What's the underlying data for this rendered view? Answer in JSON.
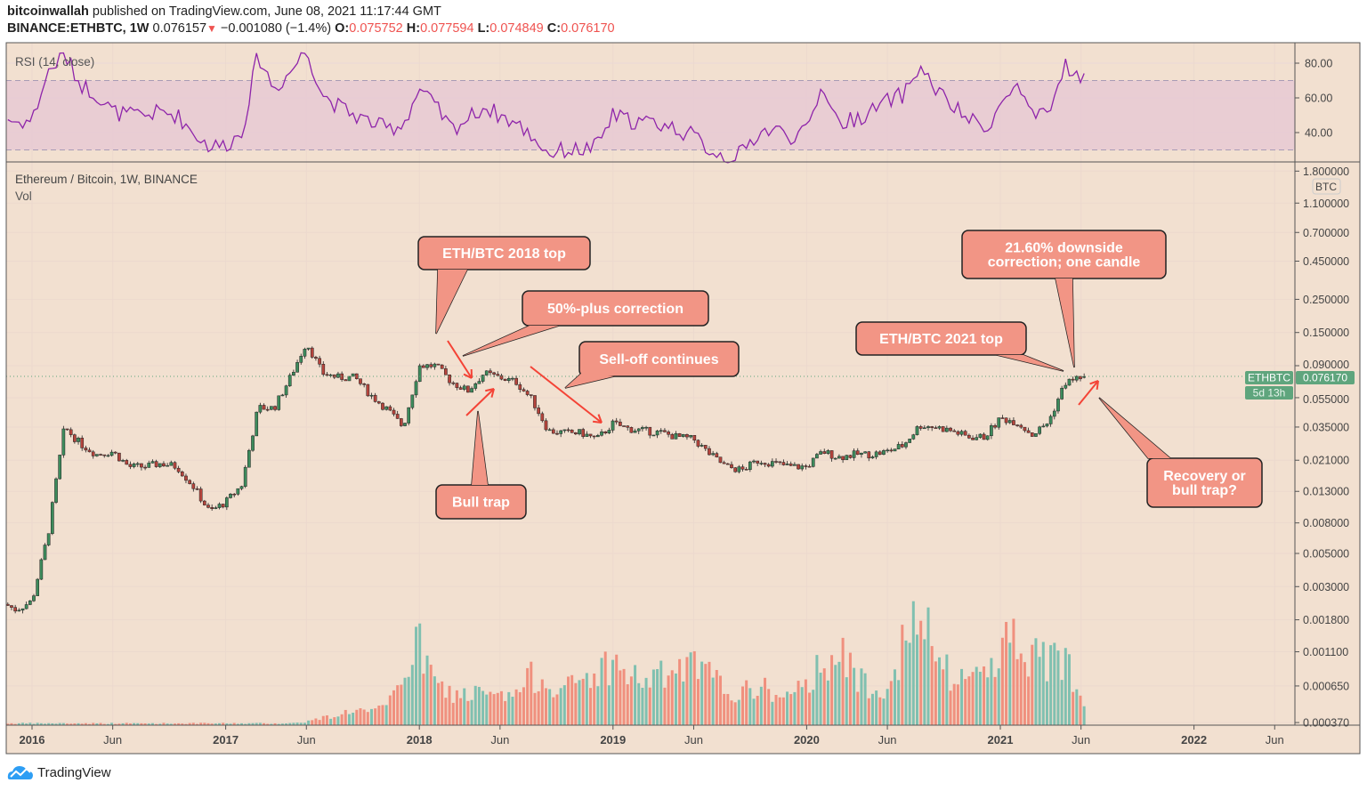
{
  "header": {
    "author": "bitcoinwallah",
    "published": "published on TradingView.com, June 08, 2021 11:17:44 GMT",
    "symbol": "BINANCE:ETHBTC, 1W",
    "last": "0.076157",
    "change": "−0.001080 (−1.4%)",
    "o_label": "O:",
    "o": "0.075752",
    "h_label": "H:",
    "h": "0.077594",
    "l_label": "L:",
    "l": "0.074849",
    "c_label": "C:",
    "c": "0.076170"
  },
  "rsi": {
    "label": "RSI (14, close)",
    "ticks": [
      "80.00",
      "60.00",
      "40.00"
    ],
    "band": [
      30,
      70
    ]
  },
  "main": {
    "legend_title": "Ethereum / Bitcoin, 1W, BINANCE",
    "vol_label": "Vol",
    "currency": "BTC",
    "price_ticks": [
      "1.800000",
      "1.100000",
      "0.700000",
      "0.450000",
      "0.250000",
      "0.150000",
      "0.090000",
      "0.055000",
      "0.035000",
      "0.021000",
      "0.013000",
      "0.008000",
      "0.005000",
      "0.003000",
      "0.001800",
      "0.001100",
      "0.000650",
      "0.000370"
    ],
    "last_symbol": "ETHBTC",
    "last_price": "0.076170",
    "countdown": "5d 13h"
  },
  "x_axis": {
    "ticks": [
      "2016",
      "Jun",
      "2017",
      "Jun",
      "2018",
      "Jun",
      "2019",
      "Jun",
      "2020",
      "Jun",
      "2021",
      "Jun",
      "2022",
      "Jun"
    ]
  },
  "annotations": {
    "top2018": [
      "ETH/BTC 2018 top"
    ],
    "correction": [
      "50%-plus correction"
    ],
    "selloff": [
      "Sell-off continues"
    ],
    "bulltrap": [
      "Bull trap"
    ],
    "top2021": [
      "ETH/BTC 2021 top"
    ],
    "downside": [
      "21.60% downside",
      "correction; one candle"
    ],
    "recovery": [
      "Recovery or",
      "bull trap?"
    ]
  },
  "footer": {
    "brand": "TradingView"
  },
  "colors": {
    "background": "#f2e0d0",
    "up_candle": "#3d8b5c",
    "down_candle": "#b5443c",
    "up_volume": "#80c0b0",
    "down_volume": "#f0907e",
    "rsi_line": "#8e24aa",
    "rsi_band": "#e8c9d3",
    "callout": "#f29585",
    "arrow": "#f44336",
    "last_price": "#5fa57d"
  },
  "chart_data": {
    "type": "candlestick",
    "title": "Ethereum / Bitcoin, 1W, BINANCE",
    "scale": "log",
    "ylim": [
      0.00037,
      1.8
    ],
    "x_range": [
      "2015-11",
      "2022-07"
    ],
    "grid": true,
    "months": [
      "2015-11",
      "2015-12",
      "2016-01",
      "2016-02",
      "2016-03",
      "2016-04",
      "2016-05",
      "2016-06",
      "2016-07",
      "2016-08",
      "2016-09",
      "2016-10",
      "2016-11",
      "2016-12",
      "2017-01",
      "2017-02",
      "2017-03",
      "2017-04",
      "2017-05",
      "2017-06",
      "2017-07",
      "2017-08",
      "2017-09",
      "2017-10",
      "2017-11",
      "2017-12",
      "2018-01",
      "2018-02",
      "2018-03",
      "2018-04",
      "2018-05",
      "2018-06",
      "2018-07",
      "2018-08",
      "2018-09",
      "2018-10",
      "2018-11",
      "2018-12",
      "2019-01",
      "2019-02",
      "2019-03",
      "2019-04",
      "2019-05",
      "2019-06",
      "2019-07",
      "2019-08",
      "2019-09",
      "2019-10",
      "2019-11",
      "2019-12",
      "2020-01",
      "2020-02",
      "2020-03",
      "2020-04",
      "2020-05",
      "2020-06",
      "2020-07",
      "2020-08",
      "2020-09",
      "2020-10",
      "2020-11",
      "2020-12",
      "2021-01",
      "2021-02",
      "2021-03",
      "2021-04",
      "2021-05",
      "2021-06"
    ],
    "close": [
      0.0024,
      0.0021,
      0.0024,
      0.0068,
      0.035,
      0.027,
      0.023,
      0.024,
      0.019,
      0.019,
      0.02,
      0.019,
      0.014,
      0.0095,
      0.011,
      0.0144,
      0.047,
      0.047,
      0.075,
      0.129,
      0.08,
      0.075,
      0.075,
      0.057,
      0.046,
      0.035,
      0.09,
      0.09,
      0.07,
      0.061,
      0.08,
      0.075,
      0.07,
      0.053,
      0.033,
      0.032,
      0.032,
      0.029,
      0.037,
      0.034,
      0.033,
      0.032,
      0.03,
      0.029,
      0.023,
      0.019,
      0.018,
      0.021,
      0.02,
      0.019,
      0.019,
      0.024,
      0.022,
      0.023,
      0.023,
      0.024,
      0.0265,
      0.036,
      0.035,
      0.033,
      0.03,
      0.03,
      0.04,
      0.038,
      0.031,
      0.038,
      0.069,
      0.076
    ],
    "rsi": [
      50,
      46,
      47,
      75,
      85,
      68,
      62,
      52,
      50,
      50,
      52,
      50,
      40,
      32,
      33,
      40,
      85,
      65,
      75,
      88,
      62,
      55,
      50,
      46,
      42,
      45,
      65,
      55,
      42,
      48,
      55,
      50,
      45,
      38,
      28,
      30,
      30,
      32,
      50,
      47,
      46,
      45,
      42,
      38,
      30,
      26,
      28,
      40,
      42,
      38,
      40,
      68,
      45,
      48,
      52,
      58,
      62,
      78,
      65,
      55,
      48,
      42,
      55,
      68,
      48,
      50,
      80,
      70
    ],
    "volume_relative": [
      2,
      2,
      2,
      2,
      2,
      2,
      2,
      2,
      2,
      2,
      2,
      2,
      2,
      2,
      2,
      2,
      2,
      2,
      2,
      4,
      8,
      12,
      18,
      14,
      20,
      60,
      90,
      45,
      35,
      35,
      35,
      30,
      35,
      55,
      50,
      40,
      50,
      60,
      70,
      55,
      50,
      55,
      60,
      65,
      55,
      40,
      35,
      45,
      35,
      30,
      45,
      75,
      80,
      55,
      45,
      45,
      90,
      120,
      80,
      50,
      55,
      60,
      90,
      100,
      75,
      70,
      80,
      30
    ],
    "last": {
      "open": 0.075752,
      "high": 0.077594,
      "low": 0.074849,
      "close": 0.07617
    }
  }
}
